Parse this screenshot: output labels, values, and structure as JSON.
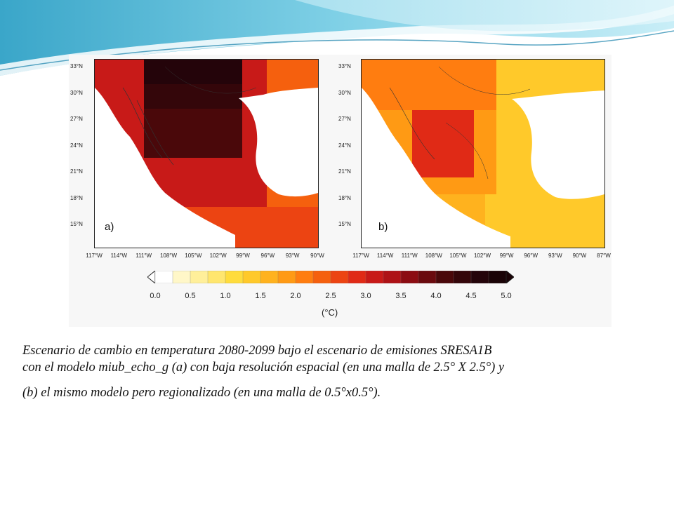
{
  "figure": {
    "panels": [
      {
        "label": "a)",
        "resolution": "2.5° X 2.5°"
      },
      {
        "label": "b)",
        "resolution": "0.5°x0.5°"
      }
    ],
    "lat_ticks": [
      "33°N",
      "30°N",
      "27°N",
      "24°N",
      "21°N",
      "18°N",
      "15°N"
    ],
    "lon_ticks_a": [
      "117°W",
      "114°W",
      "111°W",
      "108°W",
      "105°W",
      "102°W",
      "99°W",
      "96°W",
      "93°W",
      "90°W"
    ],
    "lon_ticks_b": [
      "117°W",
      "114°W",
      "111°W",
      "108°W",
      "105°W",
      "102°W",
      "99°W",
      "96°W",
      "93°W",
      "90°W",
      "87°W"
    ],
    "colorbar": {
      "ticks": [
        "0.0",
        "0.5",
        "1.0",
        "1.5",
        "2.0",
        "2.5",
        "3.0",
        "3.5",
        "4.0",
        "4.5",
        "5.0"
      ],
      "units": "(°C)",
      "colors": [
        "#ffffff",
        "#fff7c8",
        "#ffef9a",
        "#ffe66e",
        "#ffdc3c",
        "#ffc92a",
        "#ffb21e",
        "#ff9a14",
        "#ff7d10",
        "#f5600e",
        "#ec4412",
        "#e02a16",
        "#c81a18",
        "#ae1216",
        "#8c0c12",
        "#6a0a0e",
        "#4a080a",
        "#34060a",
        "#24040a",
        "#1a0306"
      ],
      "range": [
        0,
        5
      ],
      "extend": "both"
    }
  },
  "caption": {
    "line1": "Escenario de cambio en temperatura 2080-2099 bajo el escenario de emisiones SRESA1B",
    "line2": "con el modelo miub_echo_g  (a) con baja resolución espacial (en una malla de 2.5° X 2.5°) y",
    "line3": "(b) el mismo modelo pero regionalizado (en una malla de  0.5°x0.5°)."
  }
}
